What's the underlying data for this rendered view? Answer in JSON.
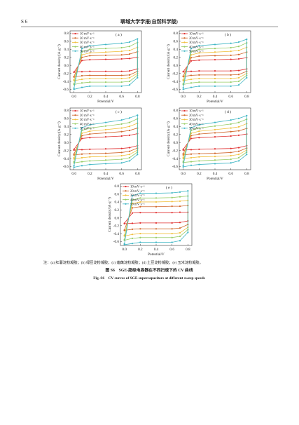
{
  "header": {
    "page": "S 6",
    "journal": "聊城大学学报(自然科学版)"
  },
  "chart_data": [
    {
      "type": "line",
      "title": "( a )",
      "x_label": "Potential/V",
      "y_label": "Current density/(A·g⁻¹)",
      "legend": "upper left",
      "x": [
        0,
        0.1,
        0.2,
        0.4,
        0.6,
        0.7,
        0.8,
        0.8,
        0.7,
        0.6,
        0.4,
        0.2,
        0.1,
        0
      ],
      "xlim": [
        -0.05,
        0.85
      ],
      "ylim": [
        -0.68,
        0.86
      ],
      "xticks": [
        {
          "value": 0,
          "label": "0.0"
        },
        0.2,
        0.4,
        0.6,
        0.8
      ],
      "yticks": [
        -0.6,
        -0.4,
        -0.2,
        {
          "value": 0,
          "label": "0.0"
        },
        0.2,
        0.4,
        0.6,
        0.8
      ],
      "series": [
        {
          "name": "10 mV·s⁻¹",
          "color": "#e03030",
          "values": [
            -0.17,
            0.12,
            0.14,
            0.15,
            0.16,
            0.17,
            0.2,
            -0.09,
            -0.14,
            -0.15,
            -0.15,
            -0.15,
            -0.16,
            -0.17
          ]
        },
        {
          "name": "20 mV·s⁻¹",
          "color": "#d0662a",
          "values": [
            -0.28,
            0.2,
            0.24,
            0.25,
            0.26,
            0.28,
            0.34,
            -0.15,
            -0.24,
            -0.25,
            -0.25,
            -0.25,
            -0.26,
            -0.29
          ]
        },
        {
          "name": "30 mV·s⁻¹",
          "color": "#f0c040",
          "values": [
            -0.36,
            0.26,
            0.31,
            0.33,
            0.35,
            0.37,
            0.45,
            -0.2,
            -0.31,
            -0.33,
            -0.33,
            -0.33,
            -0.35,
            -0.38
          ]
        },
        {
          "name": "40 mV·s⁻¹",
          "color": "#98cc66",
          "values": [
            -0.46,
            0.34,
            0.4,
            0.42,
            0.44,
            0.47,
            0.57,
            -0.25,
            -0.4,
            -0.42,
            -0.42,
            -0.42,
            -0.44,
            -0.48
          ]
        },
        {
          "name": "50 mV·s⁻¹",
          "color": "#3fb6c4",
          "values": [
            -0.57,
            0.42,
            0.49,
            0.52,
            0.55,
            0.58,
            0.66,
            -0.31,
            -0.49,
            -0.52,
            -0.52,
            -0.52,
            -0.55,
            -0.6
          ]
        }
      ]
    },
    {
      "type": "line",
      "title": "( b )",
      "x_label": "Potential/V",
      "y_label": "Current density/(A·g⁻¹)",
      "legend": "upper left",
      "x": [
        0,
        0.1,
        0.2,
        0.4,
        0.6,
        0.7,
        0.8,
        0.8,
        0.7,
        0.6,
        0.4,
        0.2,
        0.1,
        0
      ],
      "xlim": [
        -0.05,
        0.85
      ],
      "ylim": [
        -0.68,
        0.86
      ],
      "xticks": [
        {
          "value": 0,
          "label": "0.0"
        },
        0.2,
        0.4,
        0.6,
        0.8
      ],
      "yticks": [
        -0.6,
        -0.4,
        -0.2,
        {
          "value": 0,
          "label": "0.0"
        },
        0.2,
        0.4,
        0.6,
        0.8
      ],
      "series": [
        {
          "name": "10 mV·s⁻¹",
          "color": "#e03030",
          "values": [
            -0.16,
            0.11,
            0.13,
            0.14,
            0.15,
            0.16,
            0.19,
            -0.09,
            -0.13,
            -0.14,
            -0.14,
            -0.14,
            -0.15,
            -0.16
          ]
        },
        {
          "name": "20 mV·s⁻¹",
          "color": "#d0662a",
          "values": [
            -0.27,
            0.19,
            0.23,
            0.24,
            0.25,
            0.27,
            0.33,
            -0.15,
            -0.23,
            -0.24,
            -0.24,
            -0.24,
            -0.25,
            -0.28
          ]
        },
        {
          "name": "30 mV·s⁻¹",
          "color": "#f0c040",
          "values": [
            -0.36,
            0.26,
            0.31,
            0.33,
            0.35,
            0.37,
            0.45,
            -0.2,
            -0.31,
            -0.33,
            -0.33,
            -0.33,
            -0.35,
            -0.38
          ]
        },
        {
          "name": "40 mV·s⁻¹",
          "color": "#98cc66",
          "values": [
            -0.46,
            0.34,
            0.4,
            0.42,
            0.44,
            0.47,
            0.56,
            -0.25,
            -0.4,
            -0.42,
            -0.42,
            -0.42,
            -0.44,
            -0.48
          ]
        },
        {
          "name": "50 mV·s⁻¹",
          "color": "#3fb6c4",
          "values": [
            -0.56,
            0.42,
            0.49,
            0.52,
            0.55,
            0.58,
            0.65,
            -0.31,
            -0.49,
            -0.52,
            -0.52,
            -0.52,
            -0.55,
            -0.6
          ]
        }
      ]
    },
    {
      "type": "line",
      "title": "( c )",
      "x_label": "Potential/V",
      "y_label": "Current density/(A·g⁻¹)",
      "legend": "upper left",
      "x": [
        0,
        0.1,
        0.2,
        0.4,
        0.6,
        0.7,
        0.8,
        0.8,
        0.7,
        0.6,
        0.4,
        0.2,
        0.1,
        0
      ],
      "xlim": [
        -0.05,
        0.85
      ],
      "ylim": [
        -0.68,
        0.86
      ],
      "xticks": [
        {
          "value": 0,
          "label": "0.0"
        },
        0.2,
        0.4,
        0.6,
        0.8
      ],
      "yticks": [
        -0.6,
        -0.4,
        -0.2,
        {
          "value": 0,
          "label": "0.0"
        },
        0.2,
        0.4,
        0.6,
        0.8
      ],
      "series": [
        {
          "name": "10 mV·s⁻¹",
          "color": "#e03030",
          "values": [
            -0.17,
            0.1,
            0.12,
            0.14,
            0.16,
            0.18,
            0.22,
            -0.08,
            -0.13,
            -0.15,
            -0.16,
            -0.17,
            -0.18,
            -0.19
          ]
        },
        {
          "name": "20 mV·s⁻¹",
          "color": "#d0662a",
          "values": [
            -0.29,
            0.17,
            0.21,
            0.24,
            0.27,
            0.3,
            0.36,
            -0.14,
            -0.22,
            -0.25,
            -0.27,
            -0.28,
            -0.29,
            -0.31
          ]
        },
        {
          "name": "30 mV·s⁻¹",
          "color": "#f0c040",
          "values": [
            -0.38,
            0.23,
            0.28,
            0.32,
            0.36,
            0.4,
            0.48,
            -0.19,
            -0.3,
            -0.33,
            -0.35,
            -0.36,
            -0.38,
            -0.41
          ]
        },
        {
          "name": "40 mV·s⁻¹",
          "color": "#98cc66",
          "values": [
            -0.48,
            0.3,
            0.36,
            0.41,
            0.46,
            0.5,
            0.59,
            -0.24,
            -0.38,
            -0.42,
            -0.44,
            -0.46,
            -0.48,
            -0.51
          ]
        },
        {
          "name": "50 mV·s⁻¹",
          "color": "#3fb6c4",
          "values": [
            -0.58,
            0.37,
            0.44,
            0.5,
            0.56,
            0.61,
            0.68,
            -0.3,
            -0.46,
            -0.51,
            -0.53,
            -0.55,
            -0.58,
            -0.62
          ]
        }
      ]
    },
    {
      "type": "line",
      "title": "( d )",
      "x_label": "Potential/V",
      "y_label": "Current density/(A·g⁻¹)",
      "legend": "upper left",
      "x": [
        0,
        0.1,
        0.2,
        0.4,
        0.6,
        0.7,
        0.8,
        0.8,
        0.7,
        0.6,
        0.4,
        0.2,
        0.1,
        0
      ],
      "xlim": [
        -0.05,
        0.85
      ],
      "ylim": [
        -0.68,
        0.86
      ],
      "xticks": [
        {
          "value": 0,
          "label": "0.0"
        },
        0.2,
        0.4,
        0.6,
        0.8
      ],
      "yticks": [
        -0.6,
        -0.4,
        -0.2,
        {
          "value": 0,
          "label": "0.0"
        },
        0.2,
        0.4,
        0.6,
        0.8
      ],
      "series": [
        {
          "name": "10 mV·s⁻¹",
          "color": "#e03030",
          "values": [
            -0.17,
            0.1,
            0.12,
            0.14,
            0.16,
            0.18,
            0.21,
            -0.08,
            -0.13,
            -0.15,
            -0.16,
            -0.17,
            -0.18,
            -0.19
          ]
        },
        {
          "name": "20 mV·s⁻¹",
          "color": "#d0662a",
          "values": [
            -0.28,
            0.17,
            0.21,
            0.24,
            0.27,
            0.29,
            0.35,
            -0.14,
            -0.22,
            -0.25,
            -0.27,
            -0.28,
            -0.29,
            -0.31
          ]
        },
        {
          "name": "30 mV·s⁻¹",
          "color": "#f0c040",
          "values": [
            -0.37,
            0.23,
            0.28,
            0.32,
            0.36,
            0.39,
            0.47,
            -0.19,
            -0.3,
            -0.33,
            -0.35,
            -0.36,
            -0.38,
            -0.4
          ]
        },
        {
          "name": "40 mV·s⁻¹",
          "color": "#98cc66",
          "values": [
            -0.47,
            0.3,
            0.36,
            0.41,
            0.46,
            0.5,
            0.58,
            -0.24,
            -0.38,
            -0.42,
            -0.44,
            -0.46,
            -0.48,
            -0.5
          ]
        },
        {
          "name": "50 mV·s⁻¹",
          "color": "#3fb6c4",
          "values": [
            -0.57,
            0.37,
            0.44,
            0.5,
            0.56,
            0.6,
            0.67,
            -0.3,
            -0.46,
            -0.51,
            -0.53,
            -0.55,
            -0.57,
            -0.61
          ]
        }
      ]
    },
    {
      "type": "line",
      "title": "( e )",
      "x_label": "Potential/V",
      "y_label": "Current density/(A·g⁻¹)",
      "legend": "upper left",
      "x": [
        0,
        0.1,
        0.2,
        0.4,
        0.6,
        0.7,
        0.8,
        0.8,
        0.7,
        0.6,
        0.4,
        0.2,
        0.1,
        0
      ],
      "xlim": [
        -0.05,
        0.85
      ],
      "ylim": [
        -0.7,
        0.86
      ],
      "xticks": [
        {
          "value": 0,
          "label": "0.0"
        },
        0.2,
        0.4,
        0.6,
        0.8
      ],
      "yticks": [
        -0.6,
        -0.4,
        -0.2,
        {
          "value": 0,
          "label": "0.0"
        },
        0.2,
        0.4,
        0.6,
        0.8
      ],
      "series": [
        {
          "name": "10 mV·s⁻¹",
          "color": "#e03030",
          "values": [
            -0.14,
            0.12,
            0.13,
            0.13,
            0.13,
            0.14,
            0.14,
            -0.08,
            -0.12,
            -0.13,
            -0.13,
            -0.13,
            -0.14,
            -0.15
          ]
        },
        {
          "name": "20 mV·s⁻¹",
          "color": "#d0662a",
          "values": [
            -0.31,
            0.25,
            0.28,
            0.28,
            0.29,
            0.29,
            0.31,
            -0.17,
            -0.26,
            -0.28,
            -0.28,
            -0.28,
            -0.29,
            -0.32
          ]
        },
        {
          "name": "30 mV·s⁻¹",
          "color": "#f0c040",
          "values": [
            -0.44,
            0.36,
            0.4,
            0.4,
            0.41,
            0.42,
            0.44,
            -0.24,
            -0.38,
            -0.4,
            -0.4,
            -0.4,
            -0.42,
            -0.46
          ]
        },
        {
          "name": "40 mV·s⁻¹",
          "color": "#98cc66",
          "values": [
            -0.55,
            0.45,
            0.5,
            0.5,
            0.51,
            0.53,
            0.55,
            -0.3,
            -0.47,
            -0.5,
            -0.5,
            -0.5,
            -0.52,
            -0.57
          ]
        },
        {
          "name": "50 mV·s⁻¹",
          "color": "#3fb6c4",
          "values": [
            -0.66,
            0.56,
            0.62,
            0.62,
            0.63,
            0.65,
            0.68,
            -0.37,
            -0.58,
            -0.62,
            -0.62,
            -0.62,
            -0.65,
            -0.68
          ]
        }
      ]
    }
  ],
  "note": "注：(a) 红薯淀粉凝胶；(b) 绿豆淀粉凝胶；(c) 莲藕淀粉凝胶；(d) 土豆淀粉凝胶；(e) 玉米淀粉凝胶。",
  "caption_cn": "图 S6　SGE-超级电容器在不同扫速下的 CV 曲线",
  "caption_en": "Fig. S6　CV curves of SGE supercapacitors at different sweep speeds"
}
